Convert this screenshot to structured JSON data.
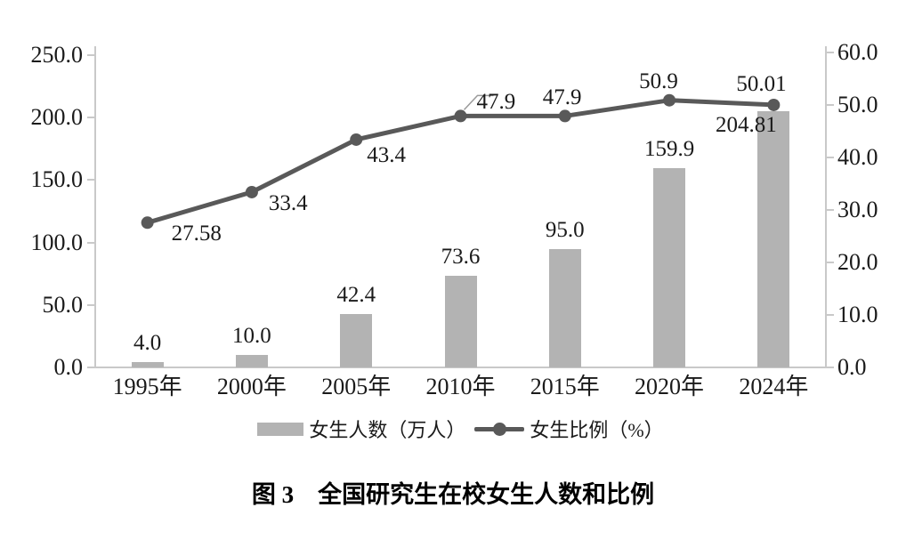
{
  "figure": {
    "caption": "图 3　全国研究生在校女生人数和比例"
  },
  "chart_data": {
    "type": "bar+line combo",
    "categories": [
      "1995年",
      "2000年",
      "2005年",
      "2010年",
      "2015年",
      "2020年",
      "2024年"
    ],
    "series": [
      {
        "name": "女生人数（万人）",
        "type": "bar",
        "axis": "left",
        "values": [
          4.0,
          10.0,
          42.4,
          73.6,
          95.0,
          159.9,
          204.81
        ],
        "labels": [
          "4.0",
          "10.0",
          "42.4",
          "73.6",
          "95.0",
          "159.9",
          "204.81"
        ]
      },
      {
        "name": "女生比例（%）",
        "type": "line",
        "axis": "right",
        "values": [
          27.58,
          33.4,
          43.4,
          47.9,
          47.9,
          50.9,
          50.01
        ],
        "labels": [
          "27.58",
          "33.4",
          "43.4",
          "47.9",
          "47.9",
          "50.9",
          "50.01"
        ]
      }
    ],
    "left_axis": {
      "min": 0,
      "max": 250,
      "ticks": [
        "0.0",
        "50.0",
        "100.0",
        "150.0",
        "200.0",
        "250.0"
      ]
    },
    "right_axis": {
      "min": 0,
      "max": 60,
      "ticks": [
        "0.0",
        "10.0",
        "20.0",
        "30.0",
        "40.0",
        "50.0",
        "60.0"
      ]
    },
    "legend": {
      "position": "bottom",
      "items": [
        "女生人数（万人）",
        "女生比例（%）"
      ]
    },
    "grid": "off",
    "colors": {
      "bar": "#b3b3b3",
      "line": "#595959",
      "marker": "#595959",
      "axis": "#c9c9c9",
      "text": "#1a1a1a"
    }
  }
}
